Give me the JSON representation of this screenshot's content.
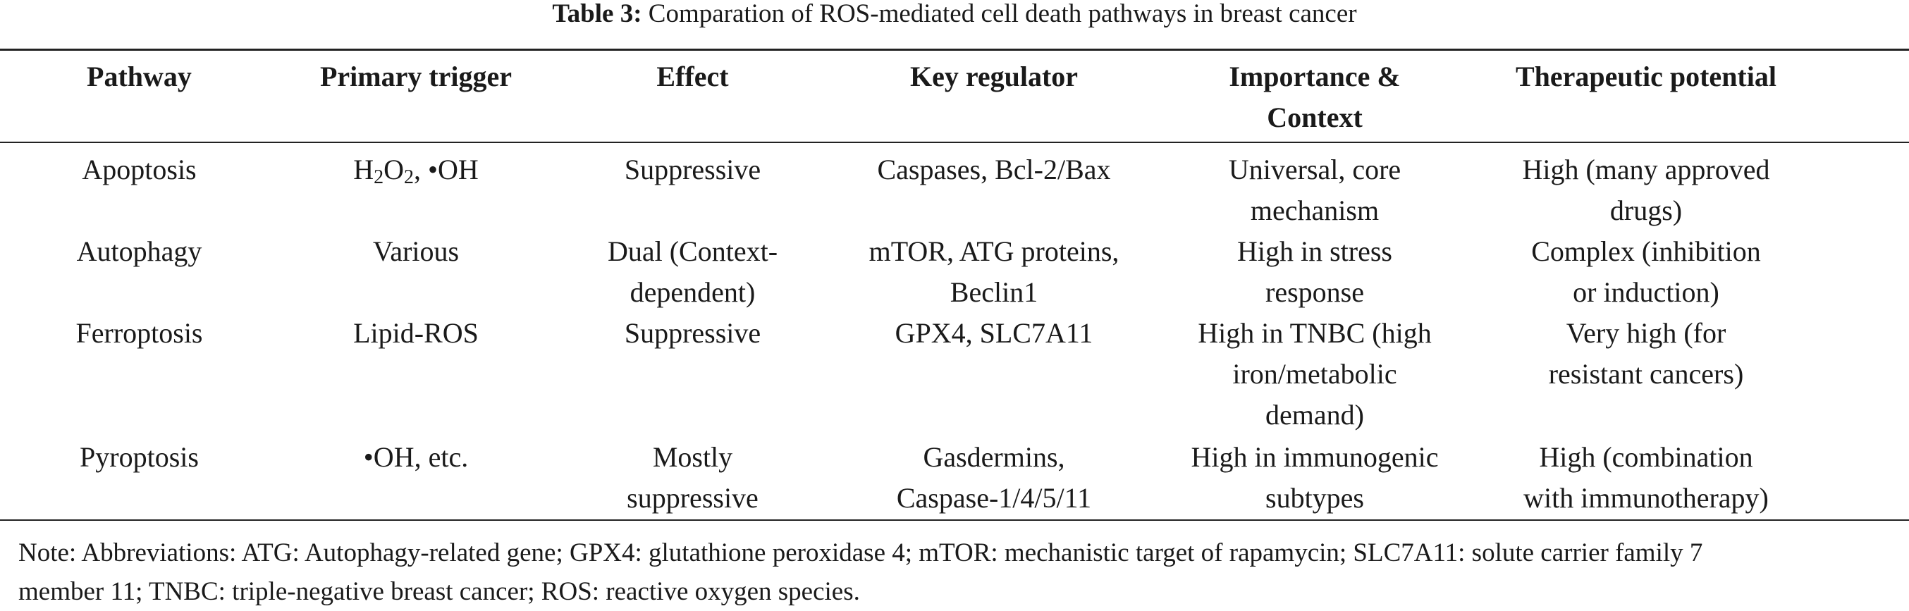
{
  "caption": {
    "label": "Table 3:",
    "text": " Comparation of ROS-mediated cell death pathways in breast cancer"
  },
  "headers": {
    "pathway": "Pathway",
    "trigger": "Primary trigger",
    "effect": "Effect",
    "regulator": "Key regulator",
    "importance_1": "Importance &",
    "importance_2": "Context",
    "therapeutic": "Therapeutic potential"
  },
  "rows": [
    {
      "pathway": "Apoptosis",
      "trigger": {
        "h": "H",
        "h_sub": "2",
        "o": "O",
        "o_sub": "2",
        "rest": ", •OH"
      },
      "effect": [
        "Suppressive"
      ],
      "regulator": [
        "Caspases, Bcl-2/Bax"
      ],
      "importance": [
        "Universal, core",
        "mechanism"
      ],
      "therapeutic": [
        "High (many approved",
        "drugs)"
      ]
    },
    {
      "pathway": "Autophagy",
      "trigger": "Various",
      "effect": [
        "Dual (Context-",
        "dependent)"
      ],
      "regulator": [
        "mTOR, ATG proteins,",
        "Beclin1"
      ],
      "importance": [
        "High in stress",
        "response"
      ],
      "therapeutic": [
        "Complex (inhibition",
        "or induction)"
      ]
    },
    {
      "pathway": "Ferroptosis",
      "trigger": "Lipid-ROS",
      "effect": [
        "Suppressive"
      ],
      "regulator": [
        "GPX4, SLC7A11"
      ],
      "importance": [
        "High in TNBC (high",
        "iron/metabolic",
        "demand)"
      ],
      "therapeutic": [
        "Very high (for",
        "resistant cancers)"
      ]
    },
    {
      "pathway": "Pyroptosis",
      "trigger": "•OH, etc.",
      "effect": [
        "Mostly",
        "suppressive"
      ],
      "regulator": [
        "Gasdermins,",
        "Caspase-1/4/5/11"
      ],
      "importance": [
        "High in immunogenic",
        "subtypes"
      ],
      "therapeutic": [
        "High (combination",
        "with immunotherapy)"
      ]
    }
  ],
  "note": {
    "line1": "Note: Abbreviations: ATG: Autophagy-related gene; GPX4: glutathione peroxidase 4; mTOR: mechanistic target of rapamycin; SLC7A11: solute carrier family 7",
    "line2": "member 11; TNBC: triple-negative breast cancer; ROS: reactive oxygen species."
  }
}
